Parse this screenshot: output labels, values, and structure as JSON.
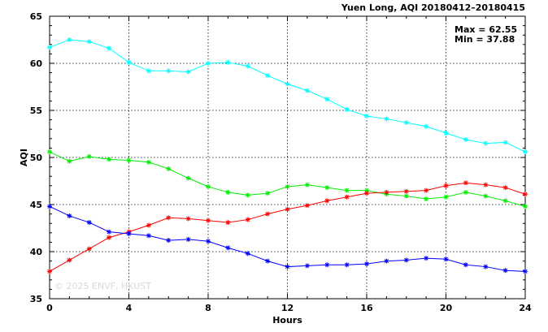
{
  "chart_data": {
    "type": "line",
    "title": "Yuen Long, AQI 20180412–20180415",
    "xlabel": "Hours",
    "ylabel": "AQI",
    "xlim": [
      0,
      24
    ],
    "ylim": [
      35,
      65
    ],
    "x_ticks": [
      0,
      4,
      8,
      12,
      16,
      20,
      24
    ],
    "y_ticks": [
      35,
      40,
      45,
      50,
      55,
      60,
      65
    ],
    "grid": true,
    "annotations": [
      "Max = 62.55",
      "Min = 37.88"
    ],
    "watermark": "© 2025 ENVF, HKUST",
    "x": [
      0,
      1,
      2,
      3,
      4,
      5,
      6,
      7,
      8,
      9,
      10,
      11,
      12,
      13,
      14,
      15,
      16,
      17,
      18,
      19,
      20,
      21,
      22,
      23,
      24
    ],
    "series": [
      {
        "color": "#00ffff",
        "values": [
          61.7,
          62.5,
          62.3,
          61.6,
          60.1,
          59.2,
          59.2,
          59.1,
          60.0,
          60.1,
          59.7,
          58.7,
          57.8,
          57.1,
          56.2,
          55.1,
          54.4,
          54.1,
          53.7,
          53.3,
          52.6,
          51.9,
          51.5,
          51.6,
          50.6
        ]
      },
      {
        "color": "#00ee00",
        "values": [
          50.6,
          49.6,
          50.1,
          49.8,
          49.7,
          49.5,
          48.8,
          47.8,
          46.9,
          46.3,
          46.0,
          46.2,
          46.9,
          47.1,
          46.8,
          46.5,
          46.5,
          46.1,
          45.9,
          45.6,
          45.8,
          46.3,
          45.9,
          45.4,
          44.8
        ]
      },
      {
        "color": "#ff0000",
        "values": [
          37.9,
          39.1,
          40.3,
          41.5,
          42.1,
          42.8,
          43.6,
          43.5,
          43.3,
          43.1,
          43.4,
          44.0,
          44.5,
          44.9,
          45.4,
          45.8,
          46.2,
          46.3,
          46.4,
          46.5,
          47.0,
          47.3,
          47.1,
          46.8,
          46.1
        ]
      },
      {
        "color": "#0000ff",
        "values": [
          44.8,
          43.8,
          43.1,
          42.1,
          41.9,
          41.7,
          41.2,
          41.3,
          41.1,
          40.4,
          39.8,
          39.0,
          38.4,
          38.5,
          38.6,
          38.6,
          38.7,
          39.0,
          39.1,
          39.3,
          39.2,
          38.6,
          38.4,
          38.0,
          37.9
        ]
      }
    ]
  }
}
